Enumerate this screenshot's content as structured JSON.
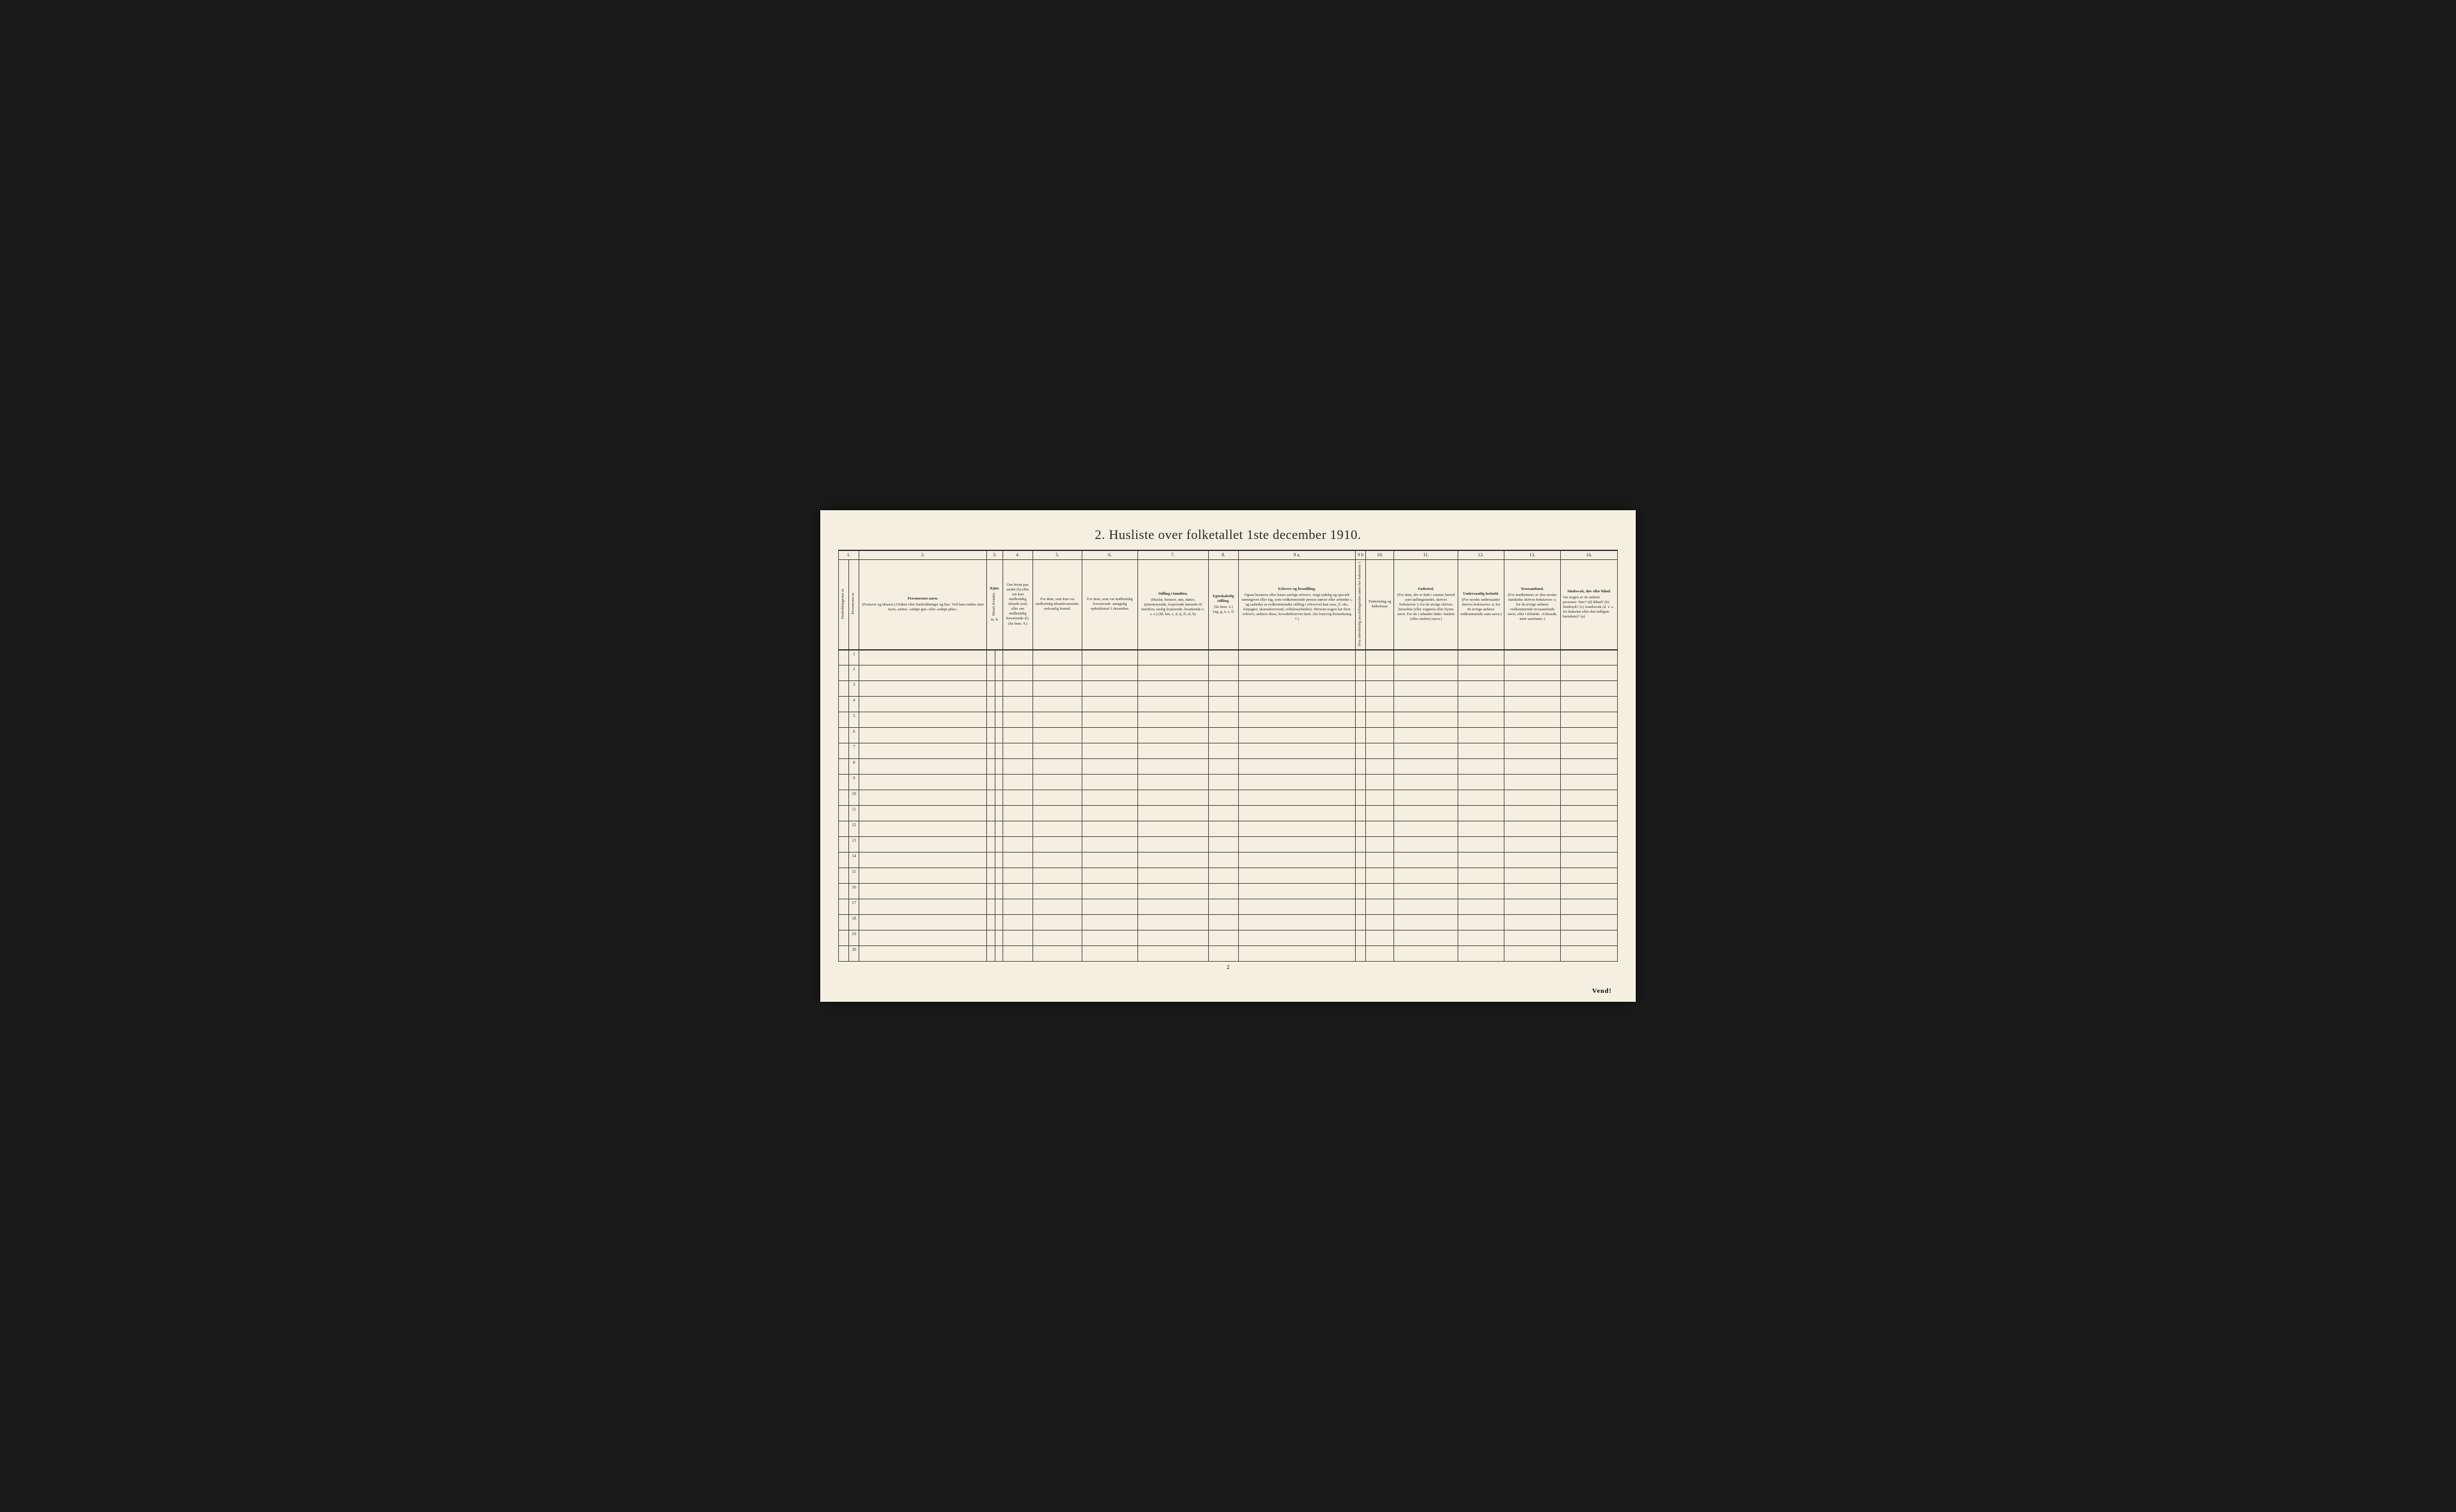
{
  "title": "2.  Husliste over folketallet 1ste december 1910.",
  "footer_page": "2",
  "vend": "Vend!",
  "col_nums": [
    "1.",
    "",
    "2.",
    "3.",
    "",
    "4.",
    "5.",
    "6.",
    "7.",
    "8.",
    "9 a.",
    "9 b",
    "10.",
    "11.",
    "12.",
    "13.",
    "14."
  ],
  "headers": {
    "c1a": "Husholdningernes nr.",
    "c1b": "Personernes nr.",
    "c2_title": "Personernes navn.",
    "c2_body": "(Fornavn og tilnavn.)\nOrdnet efter husholdninger og hus.\nVed barn endnu uten navn, sættes: «udøpt gut» eller «udøpt pike».",
    "c3_title": "Kjøn.",
    "c3_sub": "Mænd.  Kvinder.",
    "c3_mk": "m.   k.",
    "c4": "Om bosat paa stedet (b) eller om kun midlertidig tilstede (mt) eller om midlertidig fraværende (f). (Se bem. 4.)",
    "c5": "For dem, som kun var midlertidig tilstedeværende:\nsedvanlig bosted.",
    "c6": "For dem, som var midlertidig fraværende:\nantagelig opholdssted 1 december.",
    "c7_title": "Stilling i familien.",
    "c7_body": "(Husfar, husmor, søn, datter, tjenestetyende, losjerende hørende til familien, enslig losjerende, besøkende o. s. v.)\n(hf, hm, s, d, tj, fl, el, b)",
    "c8_title": "Egteskabelig stilling.",
    "c8_body": "(Se bem. 6.)\n(ug, g, e, s, f)",
    "c9a_title": "Erhverv og livsstilling.",
    "c9a_body": "Ogsaa husmors eller barns særlige erhverv.\nAngi tydelig og specielt næringsvei eller fag, som vedkommende person utøver eller arbeider i, og saaledes at vedkommendes stilling i erhvervet kan sees, (f. eks. forpagter, skomakersvend, celluloearbeider). Dersom nogen har flere erhverv, anføres disse, hovederhvervet først.\n(Se forøvrig bemerkning 7.)",
    "c9b": "Hvis arbeidsledig paa tællingstiden sættes her bokstaven: l.",
    "c10": "Fødselsdag og fødselsaar.",
    "c11_title": "Fødested.",
    "c11_body": "(For dem, der er født i samme herred som tællingsstedet, skrives bokstaven: t; for de øvrige skrives herredets (eller sognets) eller byens navn. For de i utlandet fødte: landets (eller stedets) navn.)",
    "c12_title": "Undersaatlig forhold.",
    "c12_body": "(For norske undersaatter skrives bokstaven: n; for de øvrige anføres vedkommende stats navn.)",
    "c13_title": "Trossamfund.",
    "c13_body": "(For medlemmer av den norske statskirke skrives bokstaven: s; for de øvrige anføres vedkommende trossamfunds navn, eller i tilfælde: «Uttraadt, intet samfund».)",
    "c14_title": "Sindssvak, døv eller blind.",
    "c14_body": "Var nogen av de anførte personer:\nDøv?        (d)\nBlind?       (b)\nSindssyk?  (s)\nAandssvak (d. v. s. fra fødselen eller den tidligste barndom)? (a)"
  },
  "row_count": 20,
  "colors": {
    "page_bg": "#f4efe0",
    "outer_bg": "#1a1a1a",
    "ink": "#2a2a2a",
    "rule": "#3a3a3a"
  }
}
